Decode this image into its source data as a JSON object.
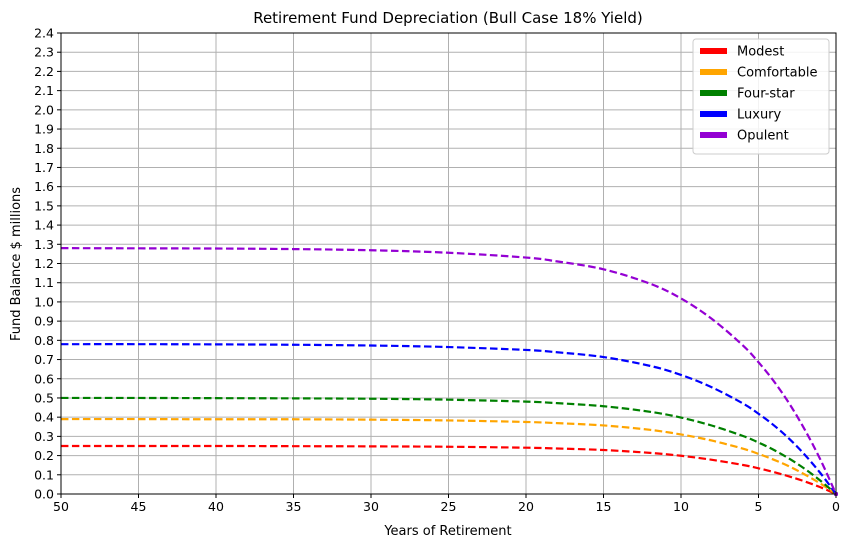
{
  "chart_data": {
    "type": "line",
    "title": "Retirement Fund Depreciation (Bull Case 18% Yield)",
    "xlabel": "Years of Retirement",
    "ylabel": "Fund Balance $ millions",
    "xlim": [
      50,
      0
    ],
    "ylim": [
      0,
      2.4
    ],
    "x_reversed": true,
    "x_ticks": [
      50,
      45,
      40,
      35,
      30,
      25,
      20,
      15,
      10,
      5,
      0
    ],
    "y_ticks": [
      0.0,
      0.1,
      0.2,
      0.3,
      0.4,
      0.5,
      0.6,
      0.7,
      0.8,
      0.9,
      1.0,
      1.1,
      1.2,
      1.3,
      1.4,
      1.5,
      1.6,
      1.7,
      1.8,
      1.9,
      2.0,
      2.1,
      2.2,
      2.3,
      2.4
    ],
    "grid": true,
    "legend_position": "top-right",
    "line_style": "dashed",
    "x": [
      50,
      45,
      40,
      35,
      30,
      25,
      20,
      18,
      15,
      12,
      10,
      8,
      6,
      5,
      4,
      3,
      2,
      1,
      0
    ],
    "series": [
      {
        "name": "Modest",
        "color": "#ff0000",
        "values": [
          0.25,
          0.25,
          0.25,
          0.249,
          0.248,
          0.246,
          0.241,
          0.237,
          0.229,
          0.214,
          0.199,
          0.178,
          0.151,
          0.134,
          0.114,
          0.091,
          0.065,
          0.035,
          0.0
        ]
      },
      {
        "name": "Comfortable",
        "color": "#ffa500",
        "values": [
          0.39,
          0.39,
          0.389,
          0.389,
          0.387,
          0.383,
          0.375,
          0.369,
          0.357,
          0.334,
          0.31,
          0.278,
          0.236,
          0.209,
          0.178,
          0.143,
          0.101,
          0.054,
          0.0
        ]
      },
      {
        "name": "Four-star",
        "color": "#008000",
        "values": [
          0.5,
          0.5,
          0.499,
          0.498,
          0.496,
          0.491,
          0.481,
          0.473,
          0.457,
          0.428,
          0.398,
          0.356,
          0.302,
          0.268,
          0.229,
          0.183,
          0.13,
          0.069,
          0.0
        ]
      },
      {
        "name": "Luxury",
        "color": "#0000ff",
        "values": [
          0.78,
          0.78,
          0.779,
          0.777,
          0.773,
          0.765,
          0.75,
          0.738,
          0.713,
          0.667,
          0.62,
          0.555,
          0.471,
          0.418,
          0.357,
          0.286,
          0.203,
          0.108,
          0.0
        ]
      },
      {
        "name": "Opulent",
        "color": "#9400d3",
        "values": [
          1.28,
          1.279,
          1.278,
          1.275,
          1.269,
          1.256,
          1.231,
          1.211,
          1.17,
          1.095,
          1.018,
          0.911,
          0.773,
          0.686,
          0.586,
          0.469,
          0.333,
          0.178,
          0.0
        ]
      }
    ]
  }
}
